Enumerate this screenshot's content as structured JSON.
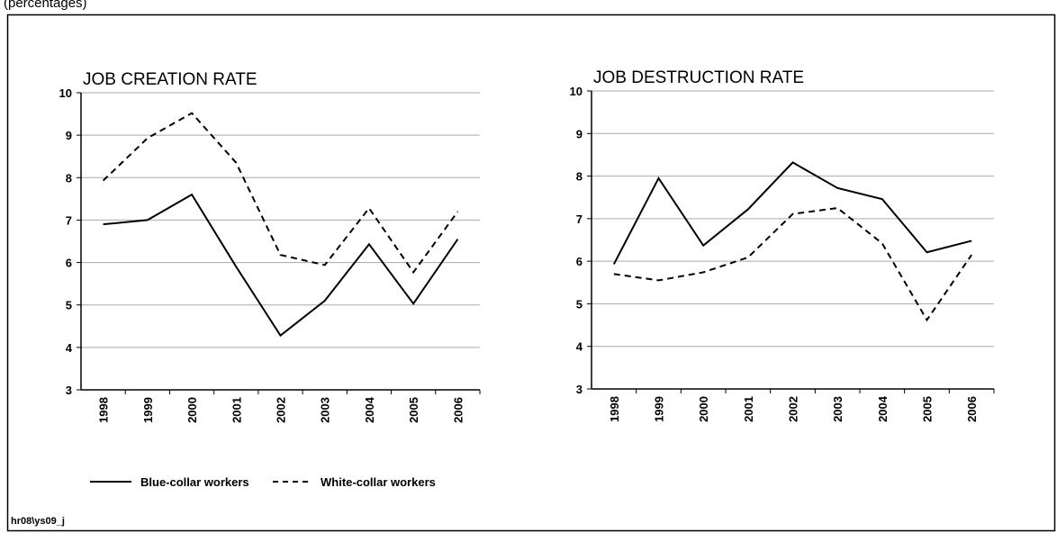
{
  "note": "(percentages)",
  "source": "hr08\\ys09_j",
  "chart_data": [
    {
      "type": "line",
      "title": "JOB CREATION RATE",
      "categories": [
        "1998",
        "1999",
        "2000",
        "2001",
        "2002",
        "2003",
        "2004",
        "2005",
        "2006"
      ],
      "ylim": [
        3,
        10
      ],
      "yticks": [
        3,
        4,
        5,
        6,
        7,
        8,
        9,
        10
      ],
      "grid": true,
      "series": [
        {
          "name": "Blue-collar workers",
          "color": "#000000",
          "style": "solid",
          "values": [
            6.9,
            7.0,
            7.6,
            5.9,
            4.28,
            5.1,
            6.43,
            5.03,
            6.55
          ]
        },
        {
          "name": "White-collar workers",
          "color": "#000000",
          "style": "dashed",
          "values": [
            7.93,
            8.93,
            9.52,
            8.35,
            6.18,
            5.94,
            7.28,
            5.77,
            7.2
          ]
        }
      ]
    },
    {
      "type": "line",
      "title": "JOB DESTRUCTION RATE",
      "categories": [
        "1998",
        "1999",
        "2000",
        "2001",
        "2002",
        "2003",
        "2004",
        "2005",
        "2006"
      ],
      "ylim": [
        3,
        10
      ],
      "yticks": [
        3,
        4,
        5,
        6,
        7,
        8,
        9,
        10
      ],
      "grid": true,
      "series": [
        {
          "name": "Blue-collar workers",
          "color": "#000000",
          "style": "solid",
          "values": [
            5.93,
            7.95,
            6.37,
            7.22,
            8.32,
            7.72,
            7.46,
            6.21,
            6.48
          ]
        },
        {
          "name": "White-collar workers",
          "color": "#000000",
          "style": "dashed",
          "values": [
            5.7,
            5.55,
            5.74,
            6.09,
            7.11,
            7.25,
            6.42,
            4.62,
            6.15
          ]
        }
      ]
    }
  ]
}
